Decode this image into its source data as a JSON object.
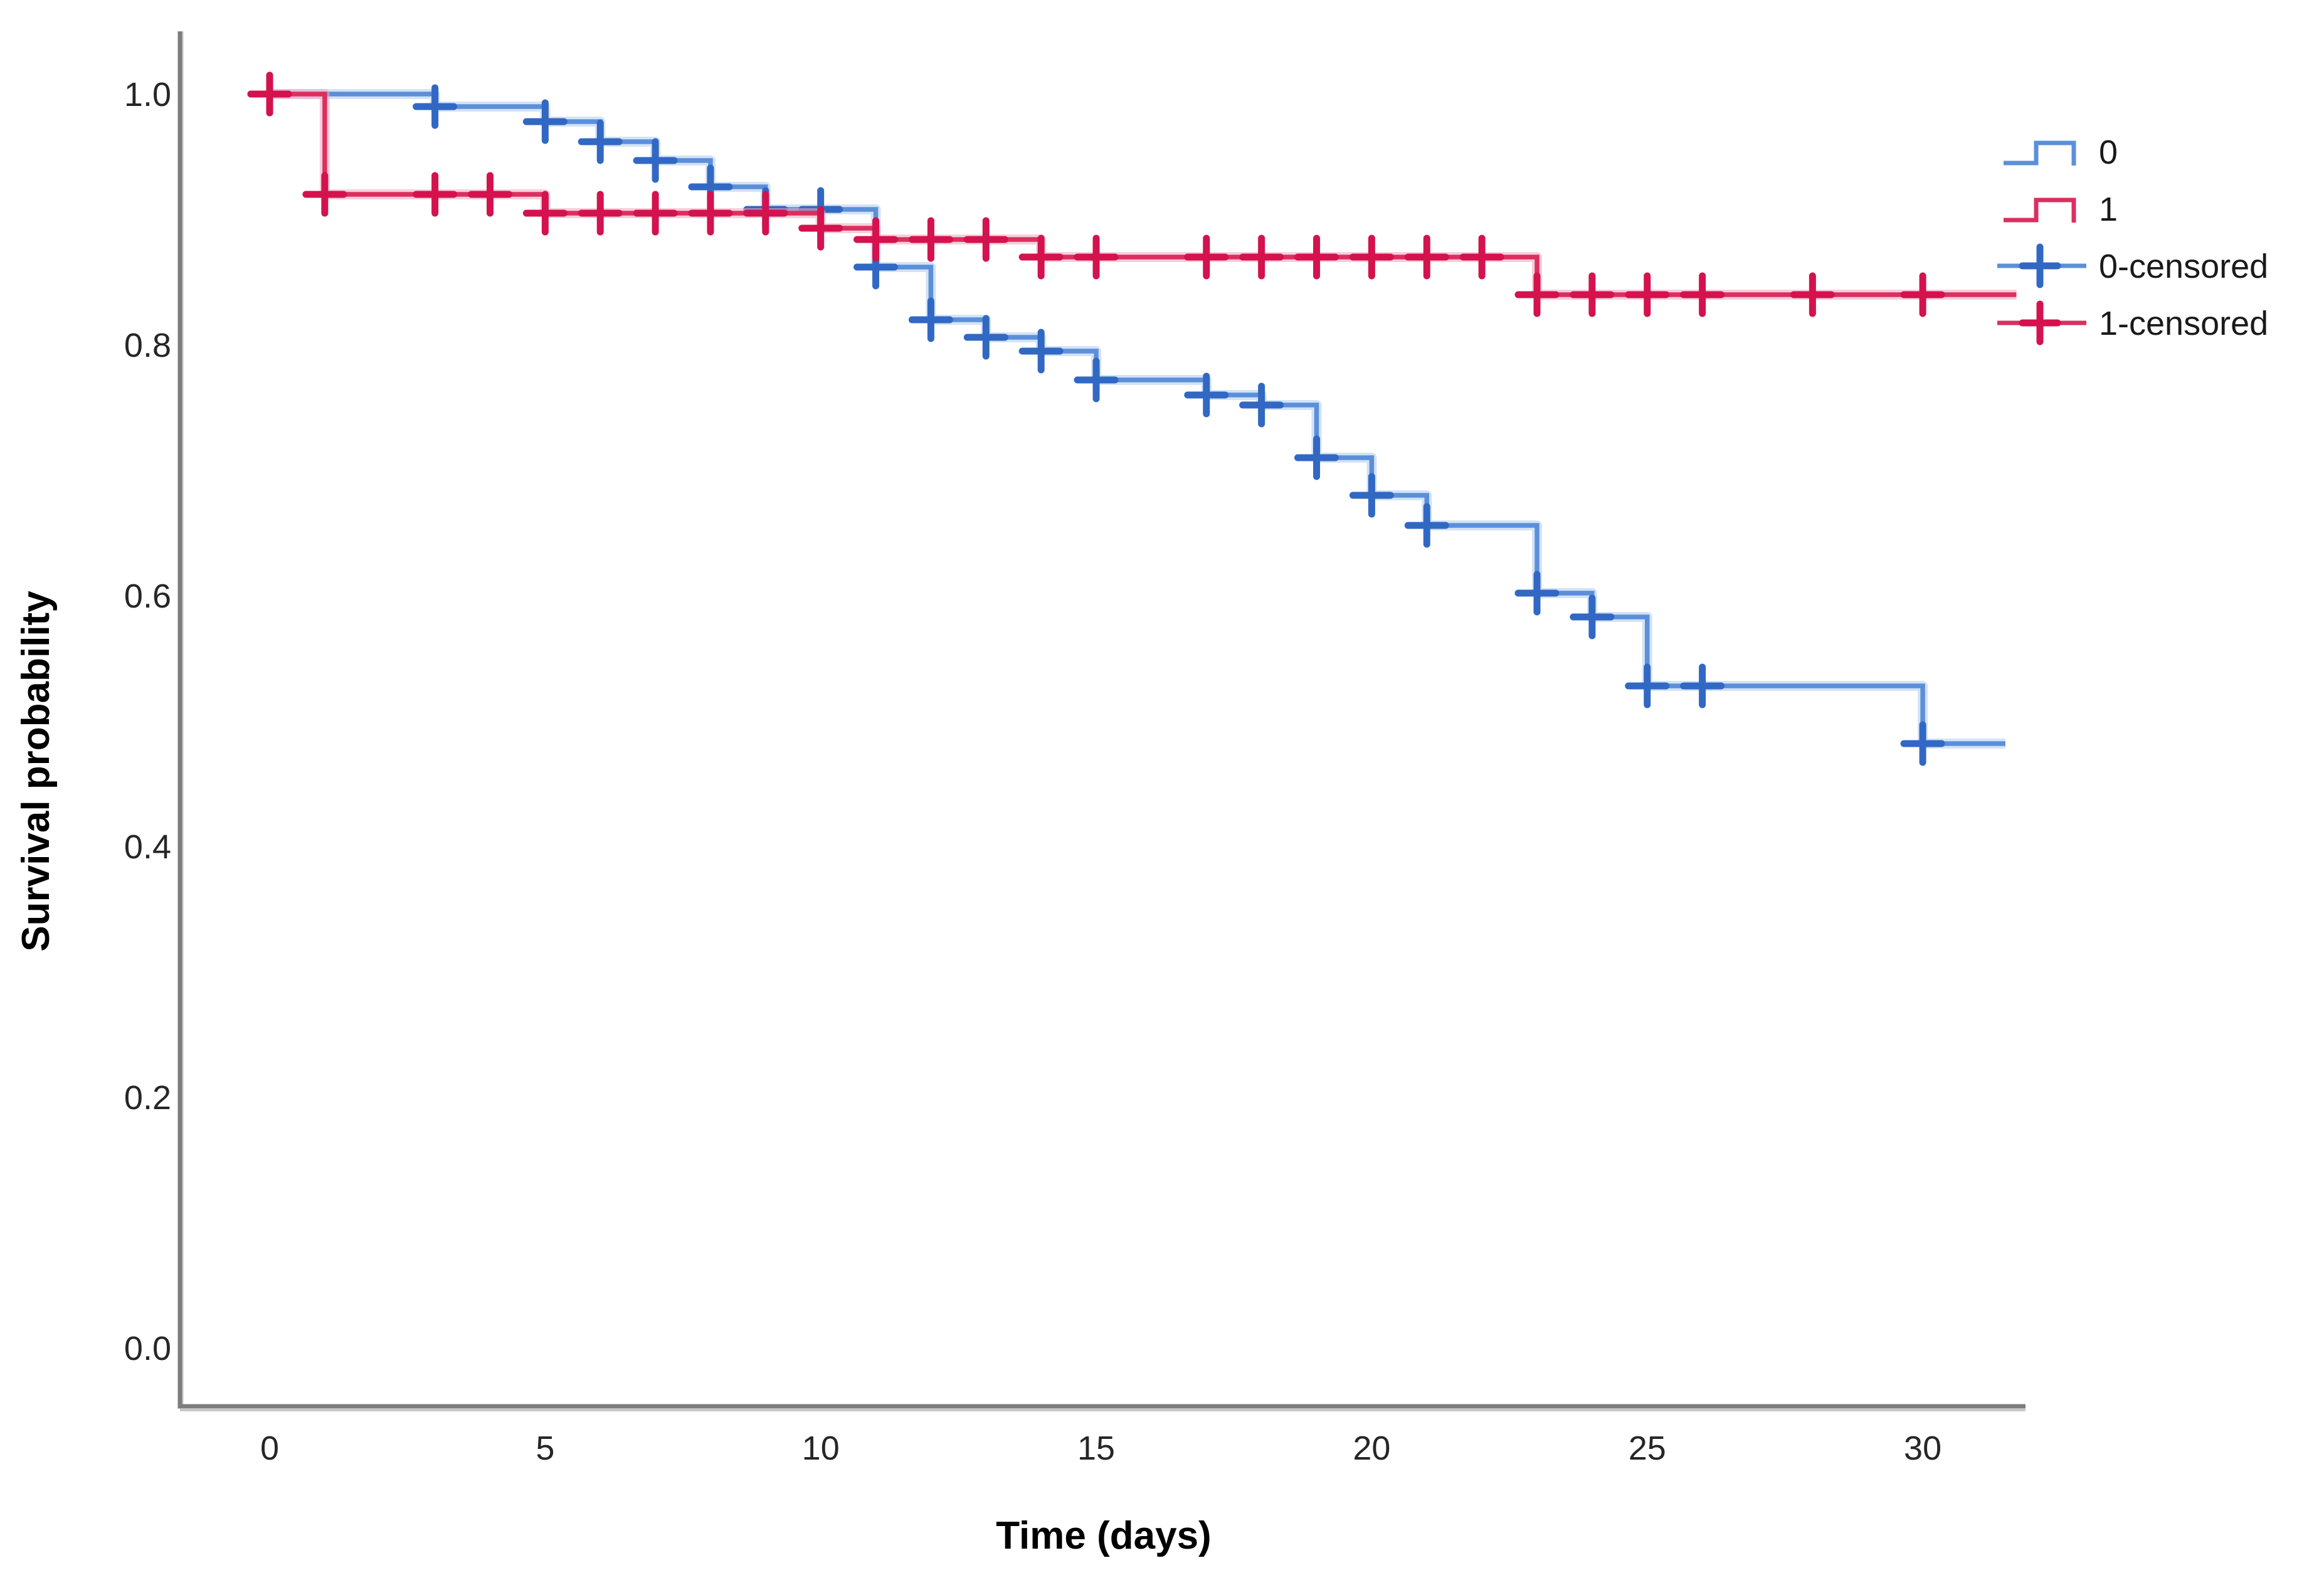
{
  "chart_data": {
    "type": "line",
    "subtype": "kaplan_meier_step",
    "title": "",
    "xlabel": "Time (days)",
    "ylabel": "Survival probability",
    "grid": false,
    "legend_position": "top-right",
    "axis_color": "#7D7D7D",
    "axis_shadow_color": "#C8C8C8",
    "background_color": "#FFFFFF",
    "xlim": [
      -1.6,
      31.9
    ],
    "ylim": [
      -0.047,
      1.05
    ],
    "x_ticks": [
      {
        "label": "0",
        "value": 0
      },
      {
        "label": "5",
        "value": 5
      },
      {
        "label": "10",
        "value": 10
      },
      {
        "label": "15",
        "value": 15
      },
      {
        "label": "20",
        "value": 20
      },
      {
        "label": "25",
        "value": 25
      },
      {
        "label": "30",
        "value": 30
      }
    ],
    "y_ticks": [
      {
        "label": "1.0",
        "value": 1.0
      },
      {
        "label": "0.8",
        "value": 0.8
      },
      {
        "label": "0.6",
        "value": 0.6
      },
      {
        "label": "0.4",
        "value": 0.4
      },
      {
        "label": "0.2",
        "value": 0.2
      },
      {
        "label": "0.0",
        "value": 0.0
      }
    ],
    "series": [
      {
        "name": "0",
        "group": "0",
        "color": "#5B8FD9",
        "halo_color": "#AECBF1",
        "censor_color": "#3168C4",
        "start": [
          0,
          1.0
        ],
        "steps": [
          [
            3,
            0.99
          ],
          [
            5,
            0.978
          ],
          [
            6,
            0.962
          ],
          [
            7,
            0.947
          ],
          [
            8,
            0.926
          ],
          [
            9,
            0.908
          ],
          [
            11,
            0.862
          ],
          [
            12,
            0.82
          ],
          [
            13,
            0.806
          ],
          [
            14,
            0.795
          ],
          [
            15,
            0.772
          ],
          [
            17,
            0.76
          ],
          [
            18,
            0.752
          ],
          [
            19,
            0.71
          ],
          [
            20,
            0.68
          ],
          [
            21,
            0.656
          ],
          [
            23,
            0.602
          ],
          [
            24,
            0.583
          ],
          [
            25,
            0.528
          ],
          [
            30,
            0.482
          ]
        ],
        "end_day": 31.5,
        "censored": [
          [
            0,
            1.0
          ],
          [
            3,
            0.99
          ],
          [
            5,
            0.978
          ],
          [
            6,
            0.962
          ],
          [
            7,
            0.947
          ],
          [
            8,
            0.926
          ],
          [
            9,
            0.908
          ],
          [
            10,
            0.908
          ],
          [
            11,
            0.862
          ],
          [
            12,
            0.82
          ],
          [
            13,
            0.806
          ],
          [
            14,
            0.795
          ],
          [
            15,
            0.772
          ],
          [
            17,
            0.76
          ],
          [
            18,
            0.752
          ],
          [
            19,
            0.71
          ],
          [
            20,
            0.68
          ],
          [
            21,
            0.656
          ],
          [
            23,
            0.602
          ],
          [
            24,
            0.583
          ],
          [
            25,
            0.528
          ],
          [
            26,
            0.528
          ],
          [
            30,
            0.482
          ]
        ]
      },
      {
        "name": "1",
        "group": "1",
        "color": "#DB2F5F",
        "halo_color": "#F0A6BC",
        "censor_color": "#D3124E",
        "start": [
          0,
          1.0
        ],
        "steps": [
          [
            1,
            0.92
          ],
          [
            5,
            0.905
          ],
          [
            10,
            0.893
          ],
          [
            11,
            0.884
          ],
          [
            14,
            0.87
          ],
          [
            23,
            0.84
          ]
        ],
        "end_day": 31.7,
        "censored": [
          [
            0,
            1.0
          ],
          [
            1,
            0.92
          ],
          [
            3,
            0.92
          ],
          [
            4,
            0.92
          ],
          [
            5,
            0.905
          ],
          [
            6,
            0.905
          ],
          [
            7,
            0.905
          ],
          [
            8,
            0.905
          ],
          [
            9,
            0.905
          ],
          [
            10,
            0.893
          ],
          [
            11,
            0.884
          ],
          [
            12,
            0.884
          ],
          [
            13,
            0.884
          ],
          [
            14,
            0.87
          ],
          [
            15,
            0.87
          ],
          [
            17,
            0.87
          ],
          [
            18,
            0.87
          ],
          [
            19,
            0.87
          ],
          [
            20,
            0.87
          ],
          [
            21,
            0.87
          ],
          [
            22,
            0.87
          ],
          [
            23,
            0.84
          ],
          [
            24,
            0.84
          ],
          [
            25,
            0.84
          ],
          [
            26,
            0.84
          ],
          [
            28,
            0.84
          ],
          [
            30,
            0.84
          ]
        ]
      }
    ],
    "legend": [
      {
        "label": "0",
        "type": "step",
        "series": 0
      },
      {
        "label": "1",
        "type": "step",
        "series": 1
      },
      {
        "label": "0-censored",
        "type": "censor",
        "series": 0
      },
      {
        "label": "1-censored",
        "type": "censor",
        "series": 1
      }
    ]
  }
}
